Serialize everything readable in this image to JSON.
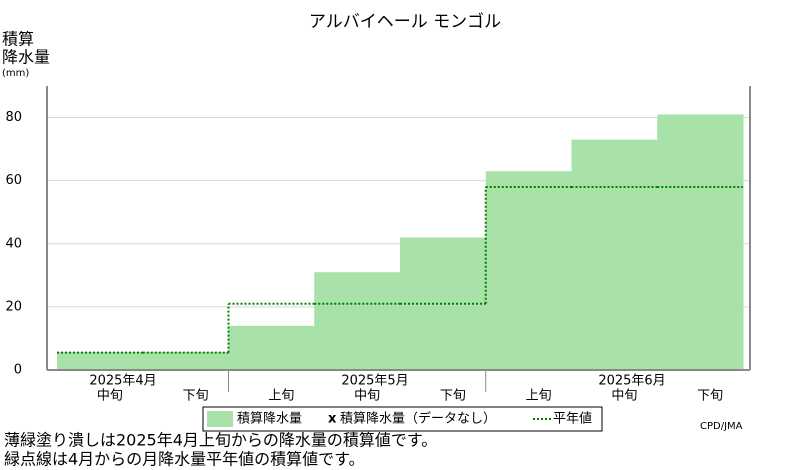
{
  "chart_data": {
    "type": "step_area",
    "title": "アルバイヘール モンゴル",
    "y_label_lines": [
      "積算",
      "降水量",
      "(mm)"
    ],
    "categories": [
      "中旬",
      "下旬",
      "上旬",
      "中旬",
      "下旬",
      "上旬",
      "中旬",
      "下旬"
    ],
    "months": [
      "2025年4月",
      "2025年5月",
      "2025年6月"
    ],
    "series": [
      {
        "name": "積算降水量",
        "color": "#a8e2a8",
        "values": [
          5.7,
          5.7,
          14,
          31,
          42,
          63,
          73,
          81
        ]
      },
      {
        "name": "平年値",
        "color": "#008000",
        "values": [
          5.5,
          5.5,
          21,
          21,
          21,
          58,
          58,
          58
        ]
      }
    ],
    "nodata_label": "積算降水量（データなし）",
    "nodata_marker": "x",
    "ylim": [
      0,
      90
    ],
    "yticks": [
      0,
      20,
      40,
      60,
      80
    ],
    "grid": true,
    "credit": "CPD/JMA",
    "notes": [
      "薄緑塗り潰しは2025年4月上旬からの降水量の積算値です。",
      "緑点線は4月からの月降水量平年値の積算値です。"
    ]
  }
}
